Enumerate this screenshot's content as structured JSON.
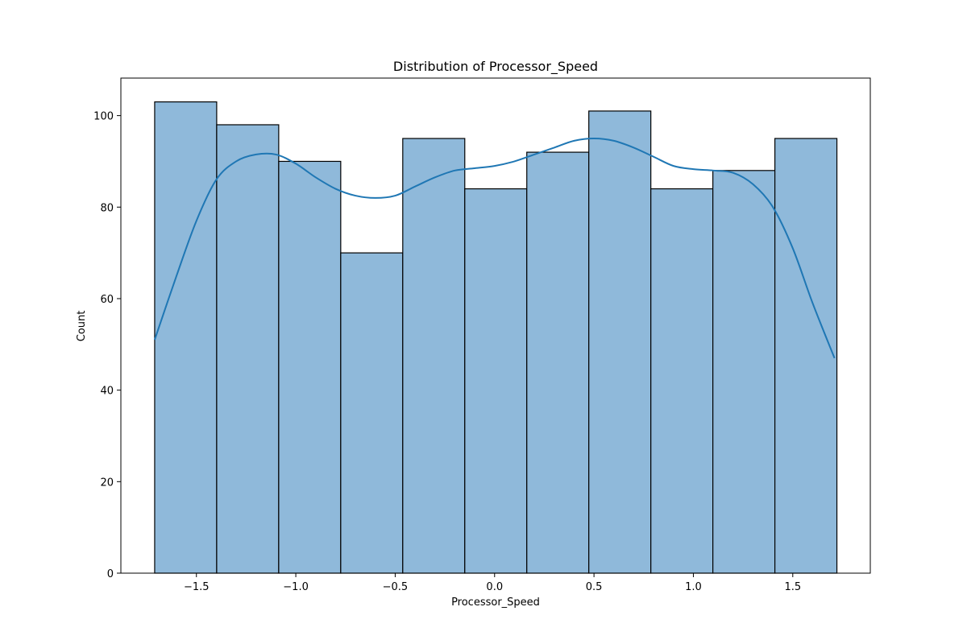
{
  "chart_data": {
    "type": "bar",
    "title": "Distribution of Processor_Speed",
    "xlabel": "Processor_Speed",
    "ylabel": "Count",
    "bin_edges": [
      -1.71,
      -1.398,
      -1.086,
      -0.774,
      -0.462,
      -0.15,
      0.162,
      0.474,
      0.786,
      1.098,
      1.41,
      1.722
    ],
    "values": [
      103,
      98,
      90,
      70,
      95,
      84,
      92,
      101,
      84,
      88,
      95
    ],
    "kde": {
      "name": "KDE",
      "x": [
        -1.71,
        -1.6,
        -1.5,
        -1.4,
        -1.3,
        -1.2,
        -1.1,
        -1.0,
        -0.9,
        -0.8,
        -0.7,
        -0.6,
        -0.5,
        -0.4,
        -0.3,
        -0.2,
        -0.1,
        0.0,
        0.1,
        0.2,
        0.3,
        0.4,
        0.5,
        0.6,
        0.7,
        0.8,
        0.9,
        1.0,
        1.1,
        1.2,
        1.3,
        1.4,
        1.5,
        1.6,
        1.71
      ],
      "y": [
        51,
        65,
        77,
        86,
        90,
        91.5,
        91.5,
        89.5,
        86.5,
        84,
        82.5,
        82,
        82.5,
        84.5,
        86.5,
        88,
        88.5,
        89,
        90,
        91.5,
        93,
        94.5,
        95,
        94.5,
        93,
        91,
        89,
        88.3,
        88,
        87.5,
        85,
        80,
        71,
        59,
        47
      ]
    },
    "xlim": [
      -1.88,
      1.89
    ],
    "ylim": [
      0,
      108.2
    ],
    "xticks": [
      -1.5,
      -1.0,
      -0.5,
      0.0,
      0.5,
      1.0,
      1.5
    ],
    "xtick_labels": [
      "−1.5",
      "−1.0",
      "−0.5",
      "0.0",
      "0.5",
      "1.0",
      "1.5"
    ],
    "yticks": [
      0,
      20,
      40,
      60,
      80,
      100
    ],
    "ytick_labels": [
      "0",
      "20",
      "40",
      "60",
      "80",
      "100"
    ],
    "grid": false,
    "colors": {
      "bar_fill": "#8fb9da",
      "bar_edge": "#000000",
      "kde_line": "#1f77b4",
      "axes": "#000000"
    }
  }
}
